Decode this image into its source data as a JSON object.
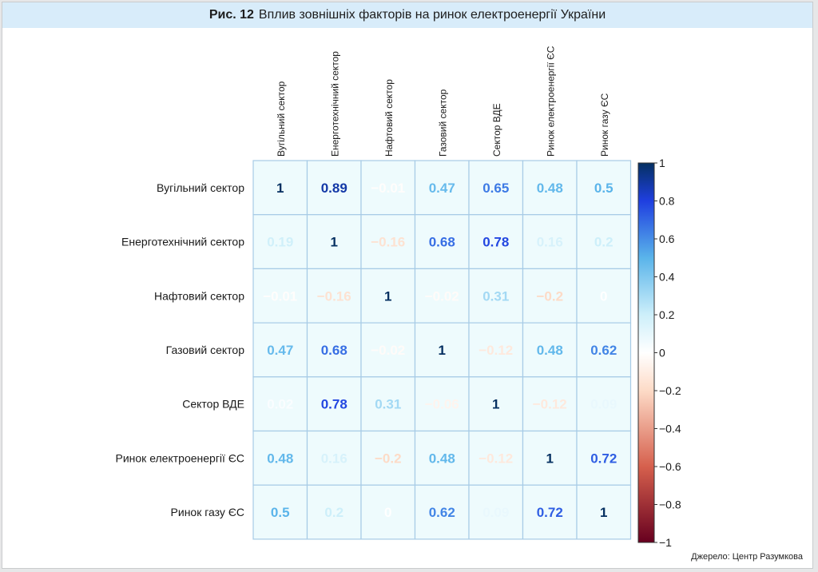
{
  "figure": {
    "number": "Рис. 12",
    "title": "Вплив зовнішніх факторів на ринок електроенергії України",
    "source": "Джерело: Центр Разумкова"
  },
  "chart_data": {
    "type": "heatmap",
    "rows": [
      "Вугільний сектор",
      "Енерготехнічний сектор",
      "Нафтовий сектор",
      "Газовий сектор",
      "Сектор ВДЕ",
      "Ринок електроенергії ЄС",
      "Ринок газу ЄС"
    ],
    "columns": [
      "Вугільний сектор",
      "Енерготехнічний сектор",
      "Нафтовий сектор",
      "Газовий сектор",
      "Сектор ВДЕ",
      "Ринок електроенергії ЄС",
      "Ринок газу ЄС"
    ],
    "values": [
      [
        1,
        0.89,
        -0.01,
        0.47,
        0.65,
        0.48,
        0.5
      ],
      [
        0.19,
        1,
        -0.16,
        0.68,
        0.78,
        0.16,
        0.2
      ],
      [
        -0.01,
        -0.16,
        1,
        -0.02,
        0.31,
        -0.2,
        0
      ],
      [
        0.47,
        0.68,
        -0.02,
        1,
        -0.12,
        0.48,
        0.62
      ],
      [
        0.02,
        0.78,
        0.31,
        -0.06,
        1,
        -0.12,
        0.09
      ],
      [
        0.48,
        0.16,
        -0.2,
        0.48,
        -0.12,
        1,
        0.72
      ],
      [
        0.5,
        0.2,
        0,
        0.62,
        0.09,
        0.72,
        1
      ]
    ],
    "value_labels": [
      [
        "1",
        "0.89",
        "−0.01",
        "0.47",
        "0.65",
        "0.48",
        "0.5"
      ],
      [
        "0.19",
        "1",
        "−0.16",
        "0.68",
        "0.78",
        "0.16",
        "0.2"
      ],
      [
        "−0.01",
        "−0.16",
        "1",
        "−0.02",
        "0.31",
        "−0.2",
        "0"
      ],
      [
        "0.47",
        "0.68",
        "−0.02",
        "1",
        "−0.12",
        "0.48",
        "0.62"
      ],
      [
        "0.02",
        "0.78",
        "0.31",
        "−0.06",
        "1",
        "−0.12",
        "0.09"
      ],
      [
        "0.48",
        "0.16",
        "−0.2",
        "0.48",
        "−0.12",
        "1",
        "0.72"
      ],
      [
        "0.5",
        "0.2",
        "0",
        "0.62",
        "0.09",
        "0.72",
        "1"
      ]
    ],
    "color_scale": {
      "range": [
        -1,
        1
      ],
      "ticks": [
        1,
        0.8,
        0.6,
        0.4,
        0.2,
        0,
        -0.2,
        -0.4,
        -0.6,
        -0.8,
        -1
      ],
      "tick_labels": [
        "1",
        "0.8",
        "0.6",
        "0.4",
        "0.2",
        "0",
        "−0.2",
        "−0.4",
        "−0.6",
        "−0.8",
        "−1"
      ],
      "stops": [
        {
          "v": -1,
          "c": "#67001f"
        },
        {
          "v": -0.6,
          "c": "#d6604d"
        },
        {
          "v": -0.2,
          "c": "#fddbc7"
        },
        {
          "v": 0,
          "c": "#ffffff"
        },
        {
          "v": 0.2,
          "c": "#cdeffa"
        },
        {
          "v": 0.5,
          "c": "#5ab4ea"
        },
        {
          "v": 0.8,
          "c": "#1f3fe0"
        },
        {
          "v": 1,
          "c": "#053061"
        }
      ]
    },
    "cell_background": "#eefbfd",
    "cell_border": "#a7cbe6",
    "legend_placement": "right",
    "grid": true
  }
}
